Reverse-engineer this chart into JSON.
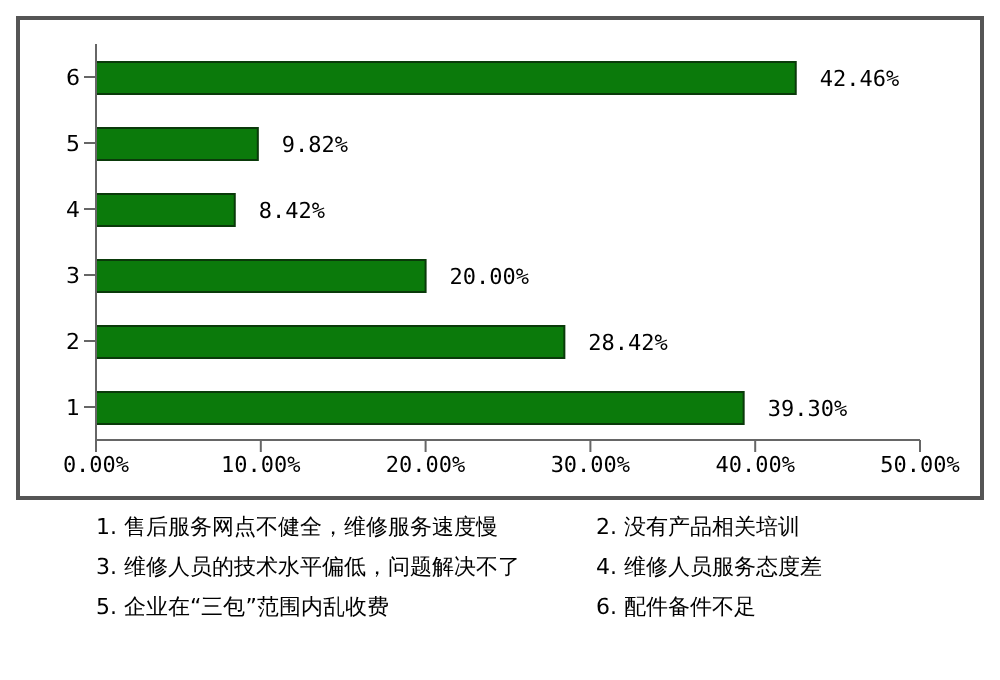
{
  "chart_data": {
    "type": "bar",
    "orientation": "horizontal",
    "categories": [
      "6",
      "5",
      "4",
      "3",
      "2",
      "1"
    ],
    "values": [
      42.46,
      9.82,
      8.42,
      20.0,
      28.42,
      39.3
    ],
    "color": "#0b7a0b",
    "value_labels": [
      "42.46%",
      "9.82%",
      "8.42%",
      "20.00%",
      "28.42%",
      "39.30%"
    ],
    "xlim": [
      0,
      50
    ],
    "xticks": [
      {
        "value": 0,
        "label": "0.00%"
      },
      {
        "value": 10,
        "label": "10.00%"
      },
      {
        "value": 20,
        "label": "20.00%"
      },
      {
        "value": 30,
        "label": "30.00%"
      },
      {
        "value": 40,
        "label": "40.00%"
      },
      {
        "value": 50,
        "label": "50.00%"
      }
    ],
    "grid": false,
    "legend": false,
    "annotations": [
      "1. 售后服务网点不健全，维修服务速度慢",
      "2. 没有产品相关培训",
      "3. 维修人员的技术水平偏低，问题解决不了",
      "4. 维修人员服务态度差",
      "5. 企业在“三包”范围内乱收费",
      "6. 配件备件不足"
    ]
  }
}
